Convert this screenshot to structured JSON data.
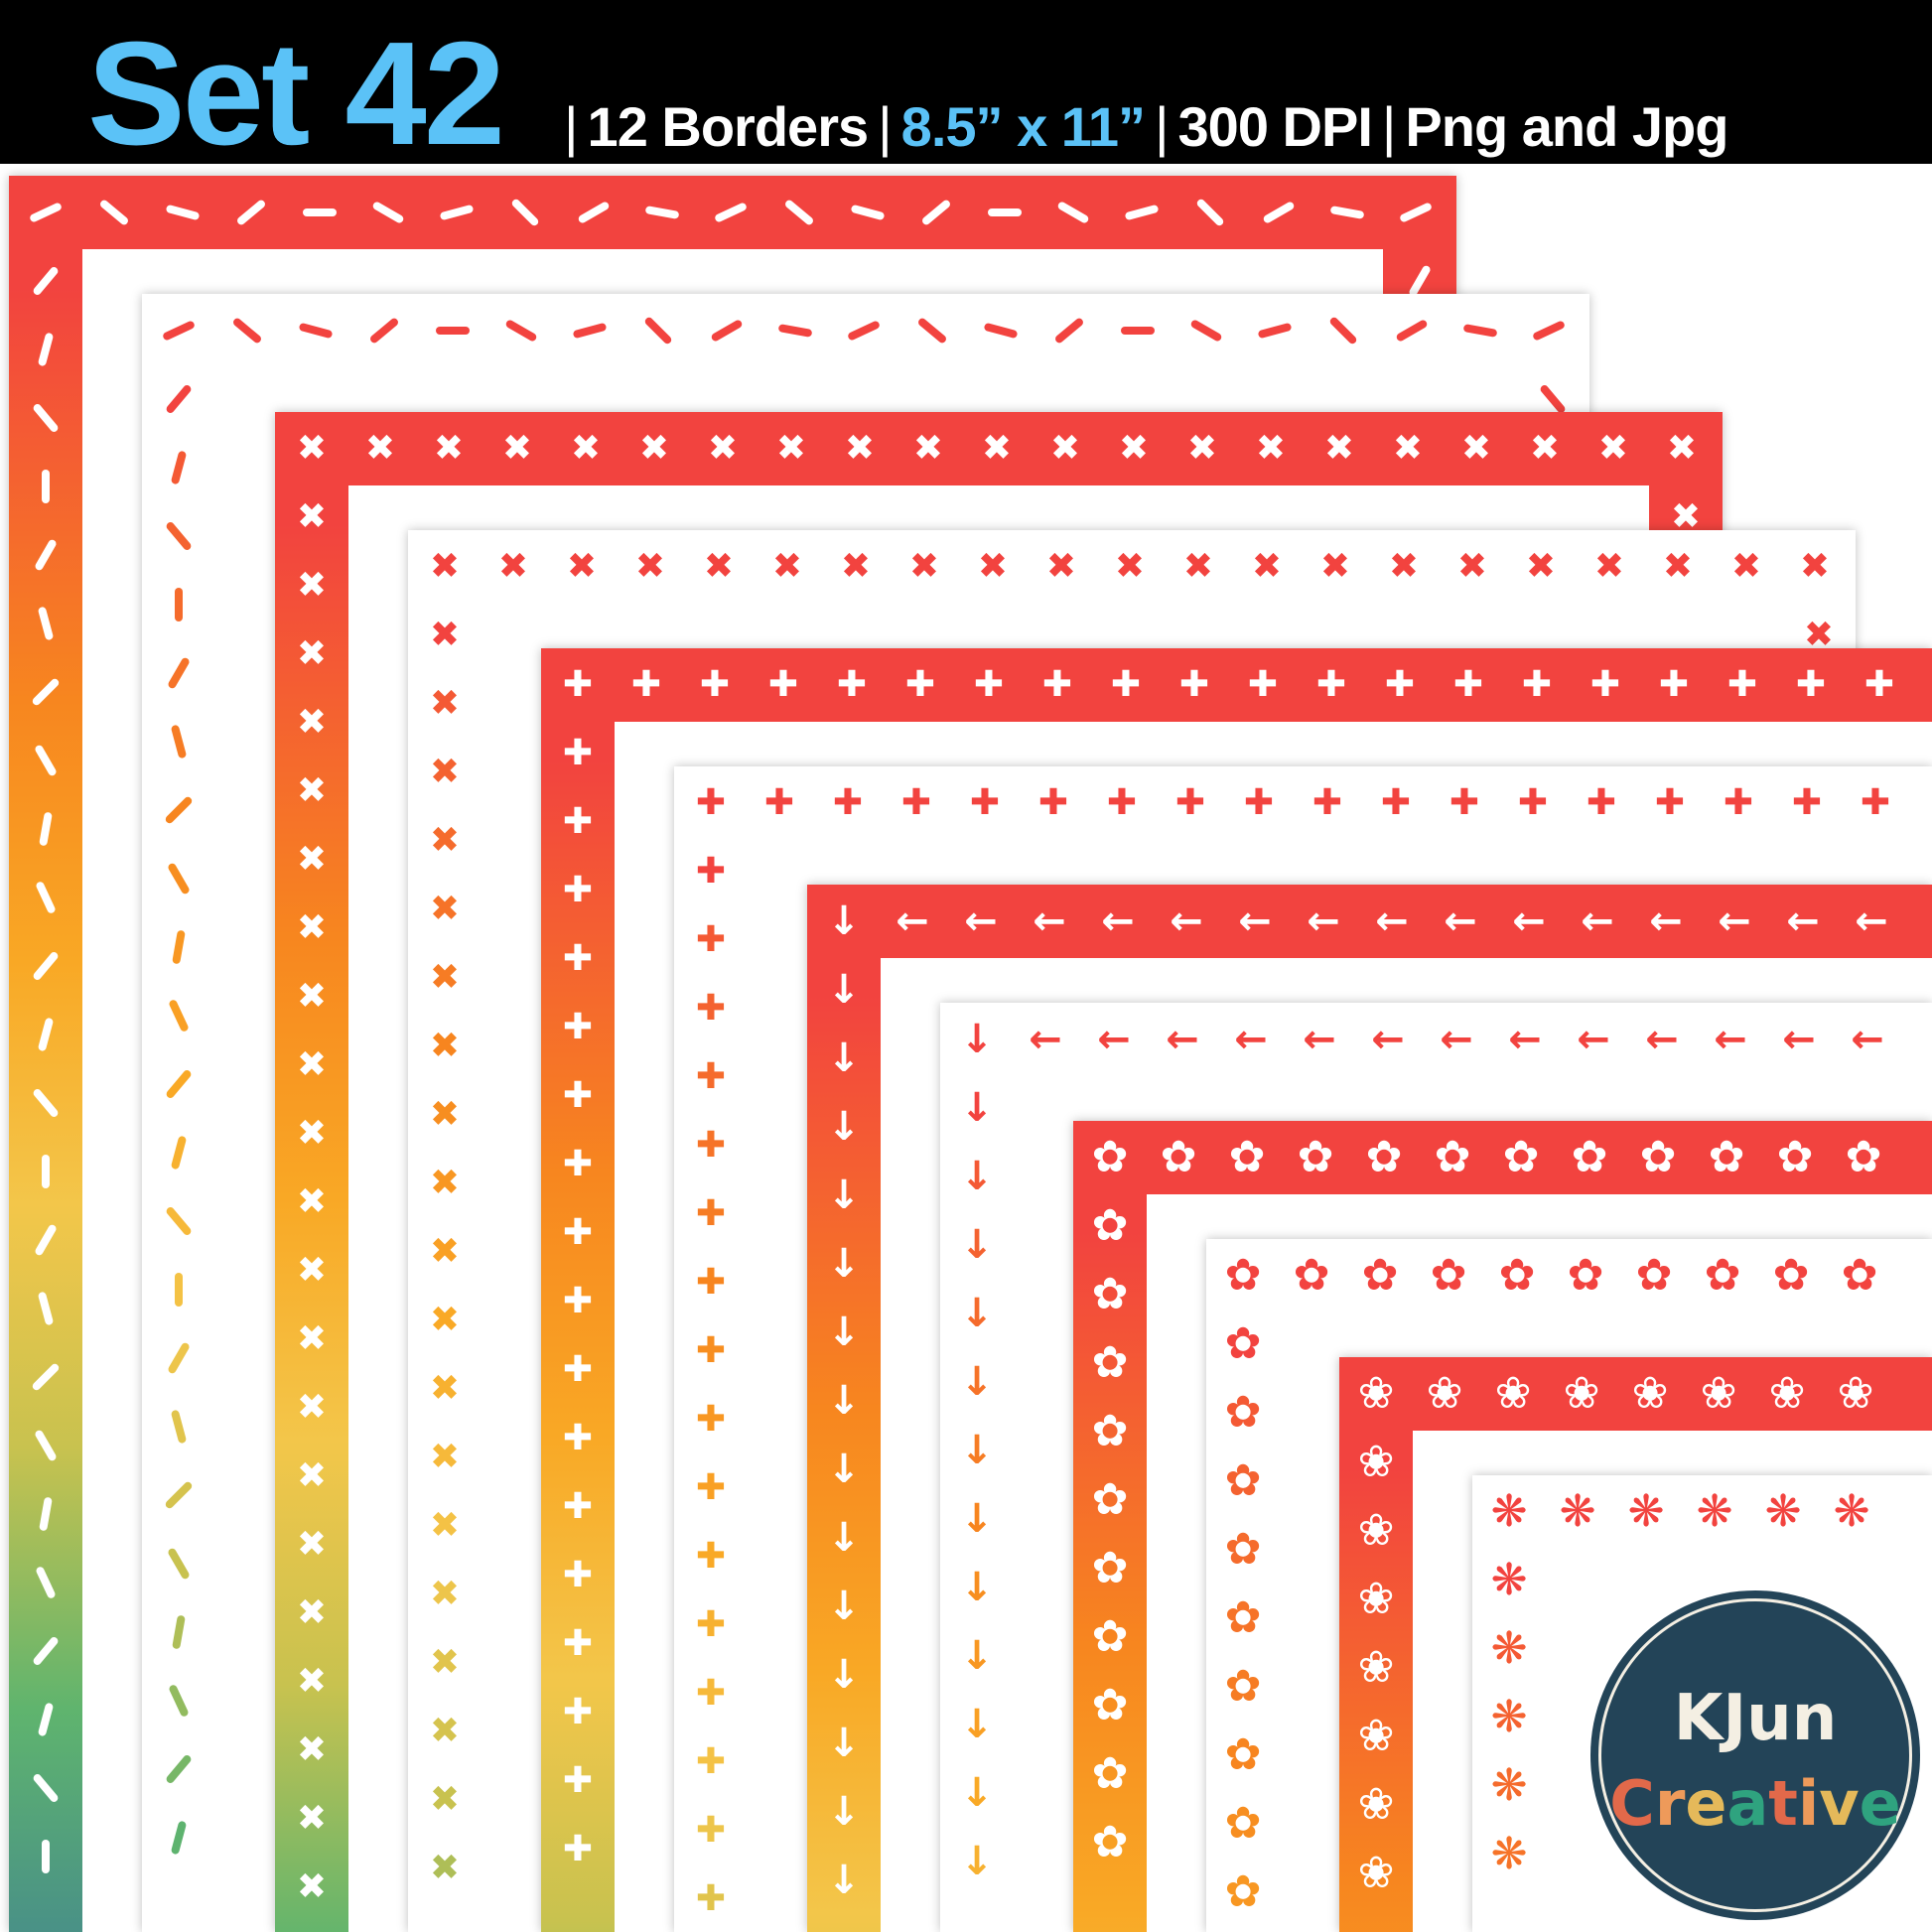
{
  "header": {
    "title": "Set 42",
    "specs": [
      "12 Borders",
      "8.5” x 11”",
      "300 DPI",
      "Png and Jpg"
    ],
    "separator": "|",
    "title_color": "#5bc2f7"
  },
  "logo": {
    "line1": "KJun",
    "line2": "Creative",
    "line2_letter_colors": [
      "#e2694a",
      "#ee9a5a",
      "#e5b95a",
      "#2fa37f",
      "#e2694a",
      "#ee9a5a",
      "#e5b95a",
      "#2fa37f"
    ],
    "background": "#234458"
  },
  "borders": [
    {
      "style": "solid",
      "motif": "stitch-dash"
    },
    {
      "style": "outline",
      "motif": "stitch-dash"
    },
    {
      "style": "solid",
      "motif": "cross",
      "glyph": "✖"
    },
    {
      "style": "outline",
      "motif": "cross",
      "glyph": "✖"
    },
    {
      "style": "solid",
      "motif": "plus",
      "glyph": "✚"
    },
    {
      "style": "outline",
      "motif": "plus",
      "glyph": "✚"
    },
    {
      "style": "solid",
      "motif": "arrow",
      "glyph": "←",
      "corner_glyph": "↓"
    },
    {
      "style": "outline",
      "motif": "arrow",
      "glyph": "←",
      "corner_glyph": "↓"
    },
    {
      "style": "solid",
      "motif": "flower-ring",
      "glyph": "✿"
    },
    {
      "style": "outline",
      "motif": "flower-ring",
      "glyph": "✿"
    },
    {
      "style": "solid",
      "motif": "flower",
      "glyph": "❀"
    },
    {
      "style": "outline",
      "motif": "asterisk-flower",
      "glyph": "❋"
    }
  ],
  "gradient_colors": [
    "#f2433f",
    "#f7861f",
    "#f9a825",
    "#f3c64a",
    "#c8c24f",
    "#5fb46e",
    "#3e7f93"
  ]
}
